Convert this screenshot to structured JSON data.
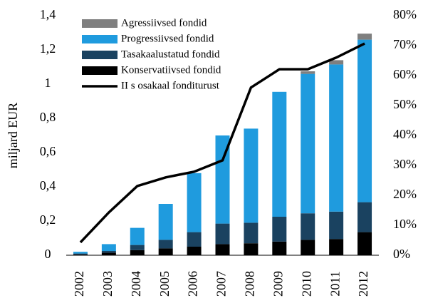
{
  "chart_data": {
    "type": "bar",
    "categories": [
      "2002",
      "2003",
      "2004",
      "2005",
      "2006",
      "2007",
      "2008",
      "2009",
      "2010",
      "2011",
      "2012"
    ],
    "ylabel": "miljard EUR",
    "ylim": [
      0,
      1.4
    ],
    "yticks": [
      0,
      {
        "value": 0.2,
        "label": "0,2"
      },
      {
        "value": 0.4,
        "label": "0,4"
      },
      {
        "value": 0.6,
        "label": "0,6"
      },
      {
        "value": 0.8,
        "label": "0,8"
      },
      1,
      {
        "value": 1.2,
        "label": "1,2"
      },
      {
        "value": 1.4,
        "label": "1,4"
      }
    ],
    "y2lim": [
      0,
      80
    ],
    "y2ticks": [
      {
        "value": 0,
        "label": "0%"
      },
      {
        "value": 10,
        "label": "10%"
      },
      {
        "value": 20,
        "label": "20%"
      },
      {
        "value": 30,
        "label": "30%"
      },
      {
        "value": 40,
        "label": "40%"
      },
      {
        "value": 50,
        "label": "50%"
      },
      {
        "value": 60,
        "label": "60%"
      },
      {
        "value": 70,
        "label": "70%"
      },
      {
        "value": 80,
        "label": "80%"
      }
    ],
    "series": [
      {
        "name": "Konservatiivsed fondid",
        "color": "#000000",
        "values": [
          0.005,
          0.015,
          0.03,
          0.04,
          0.05,
          0.065,
          0.07,
          0.08,
          0.09,
          0.095,
          0.135
        ]
      },
      {
        "name": "Tasakaalustatud fondid",
        "color": "#1a4260",
        "values": [
          0.005,
          0.01,
          0.03,
          0.05,
          0.085,
          0.12,
          0.12,
          0.145,
          0.155,
          0.16,
          0.175
        ]
      },
      {
        "name": "Progressiivsed fondid",
        "color": "#1f9bde",
        "values": [
          0.01,
          0.04,
          0.1,
          0.21,
          0.345,
          0.515,
          0.55,
          0.73,
          0.815,
          0.86,
          0.95
        ]
      },
      {
        "name": "Agressiivsed fondid",
        "color": "#7f7f7f",
        "values": [
          0,
          0,
          0,
          0,
          0,
          0,
          0,
          0,
          0.015,
          0.025,
          0.035
        ]
      },
      {
        "name": "II s osakaal fonditurust",
        "color": "#000000",
        "type": "line",
        "axis": "y2",
        "values": [
          4.3,
          14.3,
          23.1,
          26,
          27.9,
          31.7,
          56,
          62.1,
          62.1,
          66,
          70.7
        ]
      }
    ],
    "legend": "upper left"
  }
}
